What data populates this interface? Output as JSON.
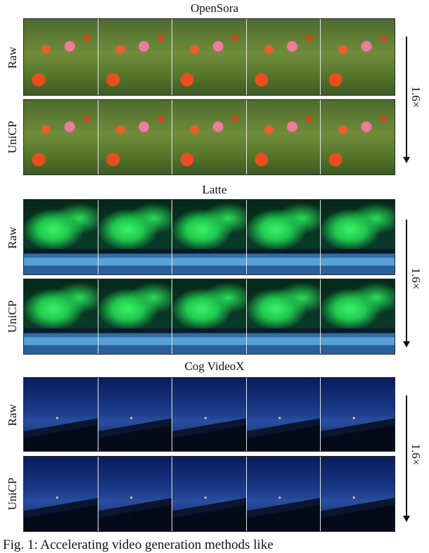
{
  "groups": [
    {
      "title": "OpenSora",
      "rows": [
        "Raw",
        "UniCP"
      ],
      "speedup": "1.6×",
      "scene": "flowers"
    },
    {
      "title": "Latte",
      "rows": [
        "Raw",
        "UniCP"
      ],
      "speedup": "1.6×",
      "scene": "aurora"
    },
    {
      "title": "Cog VideoX",
      "rows": [
        "Raw",
        "UniCP"
      ],
      "speedup": "1.6×",
      "scene": "night"
    }
  ],
  "caption": "Fig.   1:   Accelerating   video   generation   methods   like"
}
